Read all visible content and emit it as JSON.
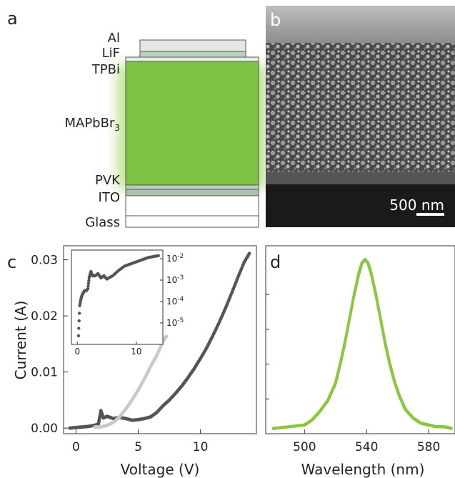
{
  "panels": {
    "a": {
      "label": "a",
      "layers": [
        "Al",
        "LiF",
        "TPBi",
        "MAPbBr",
        "PVK",
        "ITO",
        "Glass"
      ],
      "active_layer_subscript": "3",
      "colors": {
        "active": "#7dc242",
        "glow": "#b8e08a",
        "thin_layer": "#b7d3bf",
        "electrode": "#a9c2b0",
        "glass": "#ffffff"
      }
    },
    "b": {
      "label": "b",
      "scale_bar": "500 nm"
    },
    "c": {
      "label": "c"
    },
    "d": {
      "label": "d"
    }
  },
  "chart_data": [
    {
      "type": "scatter",
      "panel": "c",
      "xlabel": "Voltage (V)",
      "ylabel": "Current (A)",
      "xlim": [
        -1,
        14.5
      ],
      "ylim": [
        -0.001,
        0.0325
      ],
      "xticks": [
        0,
        5,
        10
      ],
      "yticks": [
        0.0,
        0.01,
        0.02,
        0.03
      ],
      "ytick_labels": [
        "0.00",
        "0.01",
        "0.02",
        "0.03"
      ],
      "series": [
        {
          "color": "#555555",
          "x": [
            -0.5,
            0,
            0.5,
            1,
            1.5,
            1.8,
            2.0,
            2.2,
            2.5,
            3,
            3.5,
            4,
            4.5,
            5,
            5.5,
            6,
            6.5,
            7,
            7.5,
            8,
            8.5,
            9,
            9.5,
            10,
            10.5,
            11,
            11.5,
            12,
            12.5,
            13,
            13.5,
            14
          ],
          "y": [
            0.0,
            0.0001,
            0.0002,
            0.0003,
            0.0005,
            0.0007,
            0.0031,
            0.0018,
            0.0021,
            0.0017,
            0.0019,
            0.0017,
            0.0014,
            0.0015,
            0.0017,
            0.002,
            0.0028,
            0.004,
            0.005,
            0.0062,
            0.0075,
            0.009,
            0.0106,
            0.0124,
            0.0143,
            0.0165,
            0.0188,
            0.0213,
            0.024,
            0.0268,
            0.0295,
            0.0314
          ]
        },
        {
          "color": "#c8c8c8",
          "x": [
            1.5,
            2.0,
            2.5,
            3.0,
            3.5,
            4.0,
            4.5,
            5.0,
            5.5,
            6.0,
            6.5,
            7.0,
            7.3
          ],
          "y": [
            0.0002,
            0.0002,
            0.0005,
            0.001,
            0.002,
            0.0034,
            0.005,
            0.0068,
            0.0088,
            0.011,
            0.013,
            0.0155,
            0.0165
          ]
        }
      ],
      "inset": {
        "xticks": [
          0,
          10
        ],
        "xlim": [
          -1,
          14.5
        ],
        "yscale": "log",
        "yticks": [
          "10-2",
          "10-3",
          "10-4",
          "10-5"
        ],
        "ylim_log10": [
          -6,
          -1.6
        ],
        "x": [
          0.2,
          0.4,
          0.6,
          0.8,
          1.0,
          1.2,
          1.5,
          1.8,
          2.0,
          2.3,
          2.6,
          3.0,
          3.5,
          4.0,
          4.5,
          5.0,
          6,
          7,
          8,
          9,
          10,
          11,
          12,
          13,
          14
        ],
        "y_log10": [
          -5.6,
          -4.2,
          -3.9,
          -3.7,
          -3.6,
          -3.5,
          -3.5,
          -3.4,
          -2.9,
          -2.6,
          -2.8,
          -2.8,
          -2.7,
          -2.9,
          -2.8,
          -2.95,
          -2.8,
          -2.55,
          -2.35,
          -2.25,
          -2.15,
          -2.05,
          -1.95,
          -1.9,
          -1.85
        ]
      }
    },
    {
      "type": "scatter",
      "panel": "d",
      "xlabel": "Wavelength (nm)",
      "ylabel": "",
      "xlim": [
        475,
        597
      ],
      "ylim": [
        0,
        1.08
      ],
      "xticks": [
        500,
        540,
        580
      ],
      "color": "#8cc63f",
      "x": [
        480,
        490,
        500,
        505,
        510,
        515,
        520,
        523,
        526,
        529,
        532,
        535,
        537,
        539,
        541,
        543,
        546,
        549,
        552,
        555,
        558,
        561,
        565,
        570,
        575,
        580,
        585,
        590,
        595
      ],
      "y": [
        0.03,
        0.04,
        0.05,
        0.08,
        0.13,
        0.19,
        0.29,
        0.4,
        0.52,
        0.66,
        0.8,
        0.92,
        0.98,
        1.0,
        0.98,
        0.92,
        0.8,
        0.66,
        0.52,
        0.4,
        0.3,
        0.22,
        0.14,
        0.09,
        0.06,
        0.05,
        0.04,
        0.04,
        0.03
      ]
    }
  ]
}
